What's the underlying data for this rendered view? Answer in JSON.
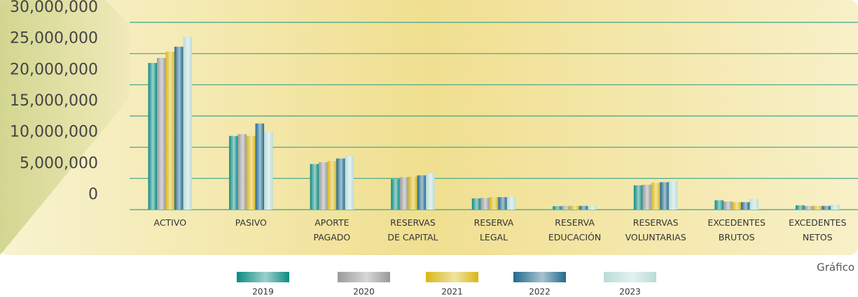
{
  "chart_data": {
    "type": "bar",
    "caption": "Gráfico",
    "categories": [
      "ACTIVO",
      "PASIVO",
      "APORTE\nPAGADO",
      "RESERVAS\nDE CAPITAL",
      "RESERVA\nLEGAL",
      "RESERVA\nEDUCACIÓN",
      "RESERVAS\nVOLUNTARIAS",
      "EXCEDENTES\nBRUTOS",
      "EXCEDENTES\nNETOS"
    ],
    "series": [
      {
        "name": "2019",
        "color": "#0b8b82",
        "values": [
          23500000,
          11800000,
          7300000,
          4900000,
          1800000,
          560000,
          3900000,
          1500000,
          700000
        ]
      },
      {
        "name": "2020",
        "color": "#9a9a9a",
        "values": [
          24300000,
          12100000,
          7600000,
          5200000,
          1900000,
          600000,
          4000000,
          1300000,
          600000
        ]
      },
      {
        "name": "2021",
        "color": "#d9b818",
        "values": [
          25300000,
          11800000,
          7800000,
          5300000,
          2000000,
          600000,
          4300000,
          1200000,
          600000
        ]
      },
      {
        "name": "2022",
        "color": "#226a8c",
        "values": [
          26100000,
          13800000,
          8200000,
          5500000,
          2000000,
          600000,
          4400000,
          1200000,
          600000
        ]
      },
      {
        "name": "2023",
        "color": "#b9dcd8",
        "values": [
          27700000,
          12500000,
          8600000,
          5800000,
          2100000,
          600000,
          4600000,
          1700000,
          800000
        ]
      }
    ],
    "ylim": [
      0,
      30000000
    ],
    "yticks": [
      0,
      {
        "value": 5000000,
        "label": "5,000,000"
      },
      {
        "value": 10000000,
        "label": "10,000,000"
      },
      {
        "value": 15000000,
        "label": "15,000,000"
      },
      {
        "value": 20000000,
        "label": "20,000,000"
      },
      {
        "value": 25000000,
        "label": "25,000,000"
      },
      {
        "value": 30000000,
        "label": "30,000,000"
      }
    ],
    "grid": true
  }
}
